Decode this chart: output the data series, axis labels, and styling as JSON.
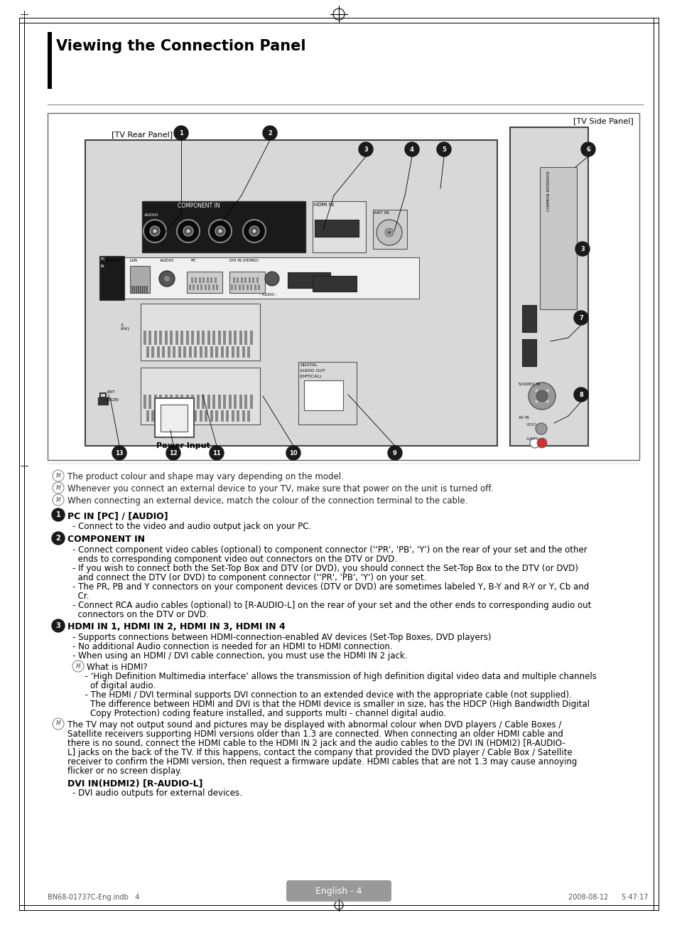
{
  "title": "Viewing the Connection Panel",
  "page_bg": "#ffffff",
  "diagram_label_top_right": "[TV Side Panel]",
  "diagram_label_top_left": "[TV Rear Panel]",
  "power_label": "Power Input",
  "footer_text": "English - 4",
  "footer_file": "BN68-01737C-Eng.indb   4",
  "footer_date": "2008-08-12      5:47:17",
  "notes_before_sections": [
    "The product colour and shape may vary depending on the model.",
    "Whenever you connect an external device to your TV, make sure that power on the unit is turned off.",
    "When connecting an external device, match the colour of the connection terminal to the cable."
  ],
  "sec1_header": "PC IN [PC] / [AUDIO]",
  "sec1_items": [
    "- Connect to the video and audio output jack on your PC."
  ],
  "sec2_header": "COMPONENT IN",
  "sec2_items": [
    "- Connect component video cables (optional) to component connector ('‘PR', 'PB', 'Y') on the rear of your set and the other",
    "  ends to corresponding component video out connectors on the DTV or DVD.",
    "- If you wish to connect both the Set-Top Box and DTV (or DVD), you should connect the Set-Top Box to the DTV (or DVD)",
    "  and connect the DTV (or DVD) to component connector ('‘PR', 'PB', 'Y') on your set.",
    "- The PR, PB and Y connectors on your component devices (DTV or DVD) are sometimes labeled Y, B-Y and R-Y or Y, Cb and",
    "  Cr.",
    "- Connect RCA audio cables (optional) to [R-AUDIO-L] on the rear of your set and the other ends to corresponding audio out",
    "  connectors on the DTV or DVD."
  ],
  "sec3_header": "HDMI IN 1, HDMI IN 2, HDMI IN 3, HDMI IN 4",
  "sec3_items": [
    "- Supports connections between HDMI-connection-enabled AV devices (Set-Top Boxes, DVD players)",
    "- No additional Audio connection is needed for an HDMI to HDMI connection.",
    "- When using an HDMI / DVI cable connection, you must use the HDMI IN 2 jack."
  ],
  "what_hdmi_header": "What is HDMI?",
  "what_hdmi_items": [
    "  - ‘High Definition Multimedia interface’ allows the transmission of high definition digital video data and multiple channels",
    "    of digital audio.",
    "  - The HDMI / DVI terminal supports DVI connection to an extended device with the appropriate cable (not supplied).",
    "    The difference between HDMI and DVI is that the HDMI device is smaller in size, has the HDCP (High Bandwidth Digital",
    "    Copy Protection) coding feature installed, and supports multi - channel digital audio."
  ],
  "note3_items": [
    "The TV may not output sound and pictures may be displayed with abnormal colour when DVD players / Cable Boxes /",
    "Satellite receivers supporting HDMI versions older than 1.3 are connected. When connecting an older HDMI cable and",
    "there is no sound, connect the HDMI cable to the HDMI IN 2 jack and the audio cables to the DVI IN (HDMI2) [R-AUDIO-",
    "L] jacks on the back of the TV. If this happens, contact the company that provided the DVD player / Cable Box / Satellite",
    "receiver to confirm the HDMI version, then request a firmware update. HDMI cables that are not 1.3 may cause annoying",
    "flicker or no screen display."
  ],
  "dvi_header": "DVI IN(HDMI2) [R-AUDIO-L]",
  "dvi_item": "- DVI audio outputs for external devices."
}
